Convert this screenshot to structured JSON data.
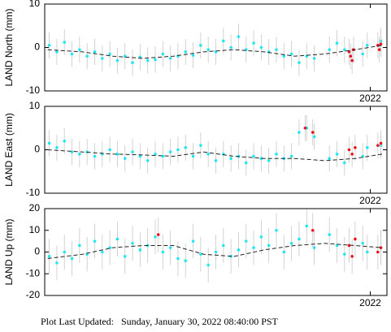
{
  "chart_data": [
    {
      "type": "scatter",
      "ylabel": "LAND North (mm)",
      "xlim": [
        2019.85,
        2022.11
      ],
      "xticks": [
        2022
      ],
      "ylim": [
        -10,
        10
      ],
      "yticks": [
        -10,
        0,
        10
      ],
      "series": [
        {
          "color": "#cccccc",
          "dash": true,
          "x": [
            2019.87,
            2020.1,
            2020.3,
            2020.5,
            2020.7,
            2020.9,
            2021.1,
            2021.3,
            2021.5,
            2021.7,
            2021.9,
            2022.08
          ],
          "values": [
            -0.5,
            -1,
            -2,
            -2.5,
            -2,
            -1,
            -0.5,
            -1,
            -2,
            -1.5,
            -0.5,
            0.5
          ]
        },
        {
          "color": "#22e6f2",
          "error": 3,
          "x": [
            2019.88,
            2019.93,
            2019.98,
            2020.03,
            2020.08,
            2020.13,
            2020.18,
            2020.23,
            2020.28,
            2020.33,
            2020.38,
            2020.43,
            2020.48,
            2020.53,
            2020.58,
            2020.63,
            2020.68,
            2020.73,
            2020.78,
            2020.83,
            2020.88,
            2020.93,
            2020.98,
            2021.03,
            2021.08,
            2021.13,
            2021.18,
            2021.23,
            2021.28,
            2021.33,
            2021.38,
            2021.43,
            2021.48,
            2021.53,
            2021.58,
            2021.63,
            2021.73,
            2021.78,
            2021.83,
            2021.95,
            2021.98,
            2022.07
          ],
          "values": [
            0.5,
            -1,
            1.2,
            -1.5,
            -0.5,
            -2,
            -1,
            -2.5,
            -1.5,
            -3,
            -2,
            -3.5,
            -2.2,
            -3,
            -2.8,
            -1.5,
            -2.5,
            -2,
            -1,
            -1.8,
            0.5,
            -0.5,
            -1,
            1.5,
            0,
            2.5,
            -0.5,
            1,
            0,
            -1,
            -0.5,
            -2,
            -1.5,
            -3.5,
            -2,
            -2.5,
            -0.5,
            1,
            -0.5,
            -1.5,
            0.5,
            1.5
          ]
        },
        {
          "color": "#e8141e",
          "error": 3,
          "x": [
            2021.86,
            2021.87,
            2021.88,
            2021.89,
            2022.05,
            2022.06,
            2022.07
          ],
          "values": [
            -1,
            -2,
            -3,
            -0.5,
            0.5,
            -0.5,
            0.8
          ]
        }
      ]
    },
    {
      "type": "scatter",
      "ylabel": "LAND East (mm)",
      "xlim": [
        2019.85,
        2022.11
      ],
      "xticks": [
        2022
      ],
      "ylim": [
        -10,
        10
      ],
      "yticks": [
        -10,
        0,
        10
      ],
      "series": [
        {
          "color": "#222222",
          "dash": true,
          "x": [
            2019.87,
            2020.1,
            2020.3,
            2020.5,
            2020.7,
            2020.9,
            2021.1,
            2021.3,
            2021.5,
            2021.7,
            2021.9,
            2022.08
          ],
          "values": [
            0,
            -0.5,
            -1,
            -1.2,
            -1.5,
            -0.5,
            -1.5,
            -2,
            -2,
            -2.5,
            -2,
            -1
          ]
        },
        {
          "color": "#22e6f2",
          "error": 3,
          "x": [
            2019.88,
            2019.93,
            2019.98,
            2020.03,
            2020.08,
            2020.13,
            2020.18,
            2020.23,
            2020.28,
            2020.33,
            2020.38,
            2020.43,
            2020.48,
            2020.53,
            2020.58,
            2020.63,
            2020.68,
            2020.73,
            2020.78,
            2020.83,
            2020.88,
            2020.93,
            2020.98,
            2021.03,
            2021.08,
            2021.13,
            2021.18,
            2021.23,
            2021.28,
            2021.33,
            2021.38,
            2021.43,
            2021.48,
            2021.53,
            2021.58,
            2021.63,
            2021.73,
            2021.78,
            2021.83,
            2021.95,
            2021.98,
            2022.07
          ],
          "values": [
            1.5,
            0.5,
            2,
            -0.5,
            -1,
            -0.5,
            -1.5,
            -1,
            0,
            -1,
            -2,
            -0.5,
            -1.5,
            -2.5,
            -1,
            -1.5,
            -0.5,
            0,
            0.5,
            -1.5,
            1,
            -1,
            -2.5,
            -1,
            -2,
            -1.5,
            -3,
            -1.5,
            -2,
            -2.5,
            -1,
            -2,
            -1.5,
            4,
            5,
            3,
            -2,
            -1,
            -3,
            -1.5,
            0.5,
            1
          ]
        },
        {
          "color": "#e8141e",
          "error": 3,
          "x": [
            2021.57,
            2021.62,
            2021.86,
            2021.88,
            2021.9,
            2022.05,
            2022.07
          ],
          "values": [
            5,
            4,
            0,
            -1,
            0.5,
            1,
            1.5
          ]
        }
      ]
    },
    {
      "type": "scatter",
      "ylabel": "LAND Up (mm)",
      "xlim": [
        2019.85,
        2022.11
      ],
      "xticks": [
        2022
      ],
      "ylim": [
        -20,
        20
      ],
      "yticks": [
        -20,
        -10,
        0,
        10,
        20
      ],
      "series": [
        {
          "color": "#222222",
          "dash": true,
          "x": [
            2019.87,
            2020.1,
            2020.3,
            2020.5,
            2020.7,
            2020.9,
            2021.1,
            2021.3,
            2021.5,
            2021.7,
            2021.9,
            2022.08
          ],
          "values": [
            -3,
            -1,
            2,
            3,
            3,
            -1,
            -2,
            1,
            3,
            4,
            3,
            2
          ]
        },
        {
          "color": "#22e6f2",
          "error": 8,
          "x": [
            2019.88,
            2019.93,
            2019.98,
            2020.03,
            2020.08,
            2020.13,
            2020.18,
            2020.23,
            2020.28,
            2020.33,
            2020.38,
            2020.43,
            2020.48,
            2020.53,
            2020.58,
            2020.63,
            2020.68,
            2020.73,
            2020.78,
            2020.83,
            2020.88,
            2020.93,
            2020.98,
            2021.03,
            2021.08,
            2021.13,
            2021.18,
            2021.23,
            2021.28,
            2021.33,
            2021.38,
            2021.43,
            2021.48,
            2021.53,
            2021.58,
            2021.63,
            2021.73,
            2021.78,
            2021.83,
            2021.95,
            2021.98,
            2022.07
          ],
          "values": [
            -2,
            -5,
            0,
            -3,
            3,
            -1,
            5,
            0,
            2,
            6,
            -2,
            4,
            1,
            3,
            7,
            0,
            2,
            -3,
            -4,
            5,
            -1,
            -6,
            0,
            3,
            -2,
            1,
            5,
            2,
            7,
            3,
            10,
            0,
            4,
            6,
            12,
            2,
            8,
            3,
            -1,
            4,
            0,
            2
          ]
        },
        {
          "color": "#e8141e",
          "error": 8,
          "x": [
            2020.6,
            2021.62,
            2021.86,
            2021.88,
            2021.9,
            2022.05,
            2022.07
          ],
          "values": [
            8,
            10,
            3,
            -2,
            6,
            0,
            2
          ]
        }
      ]
    }
  ],
  "footer": "Plot Last Updated:   Sunday, January 30, 2022 08:40:00 PST"
}
